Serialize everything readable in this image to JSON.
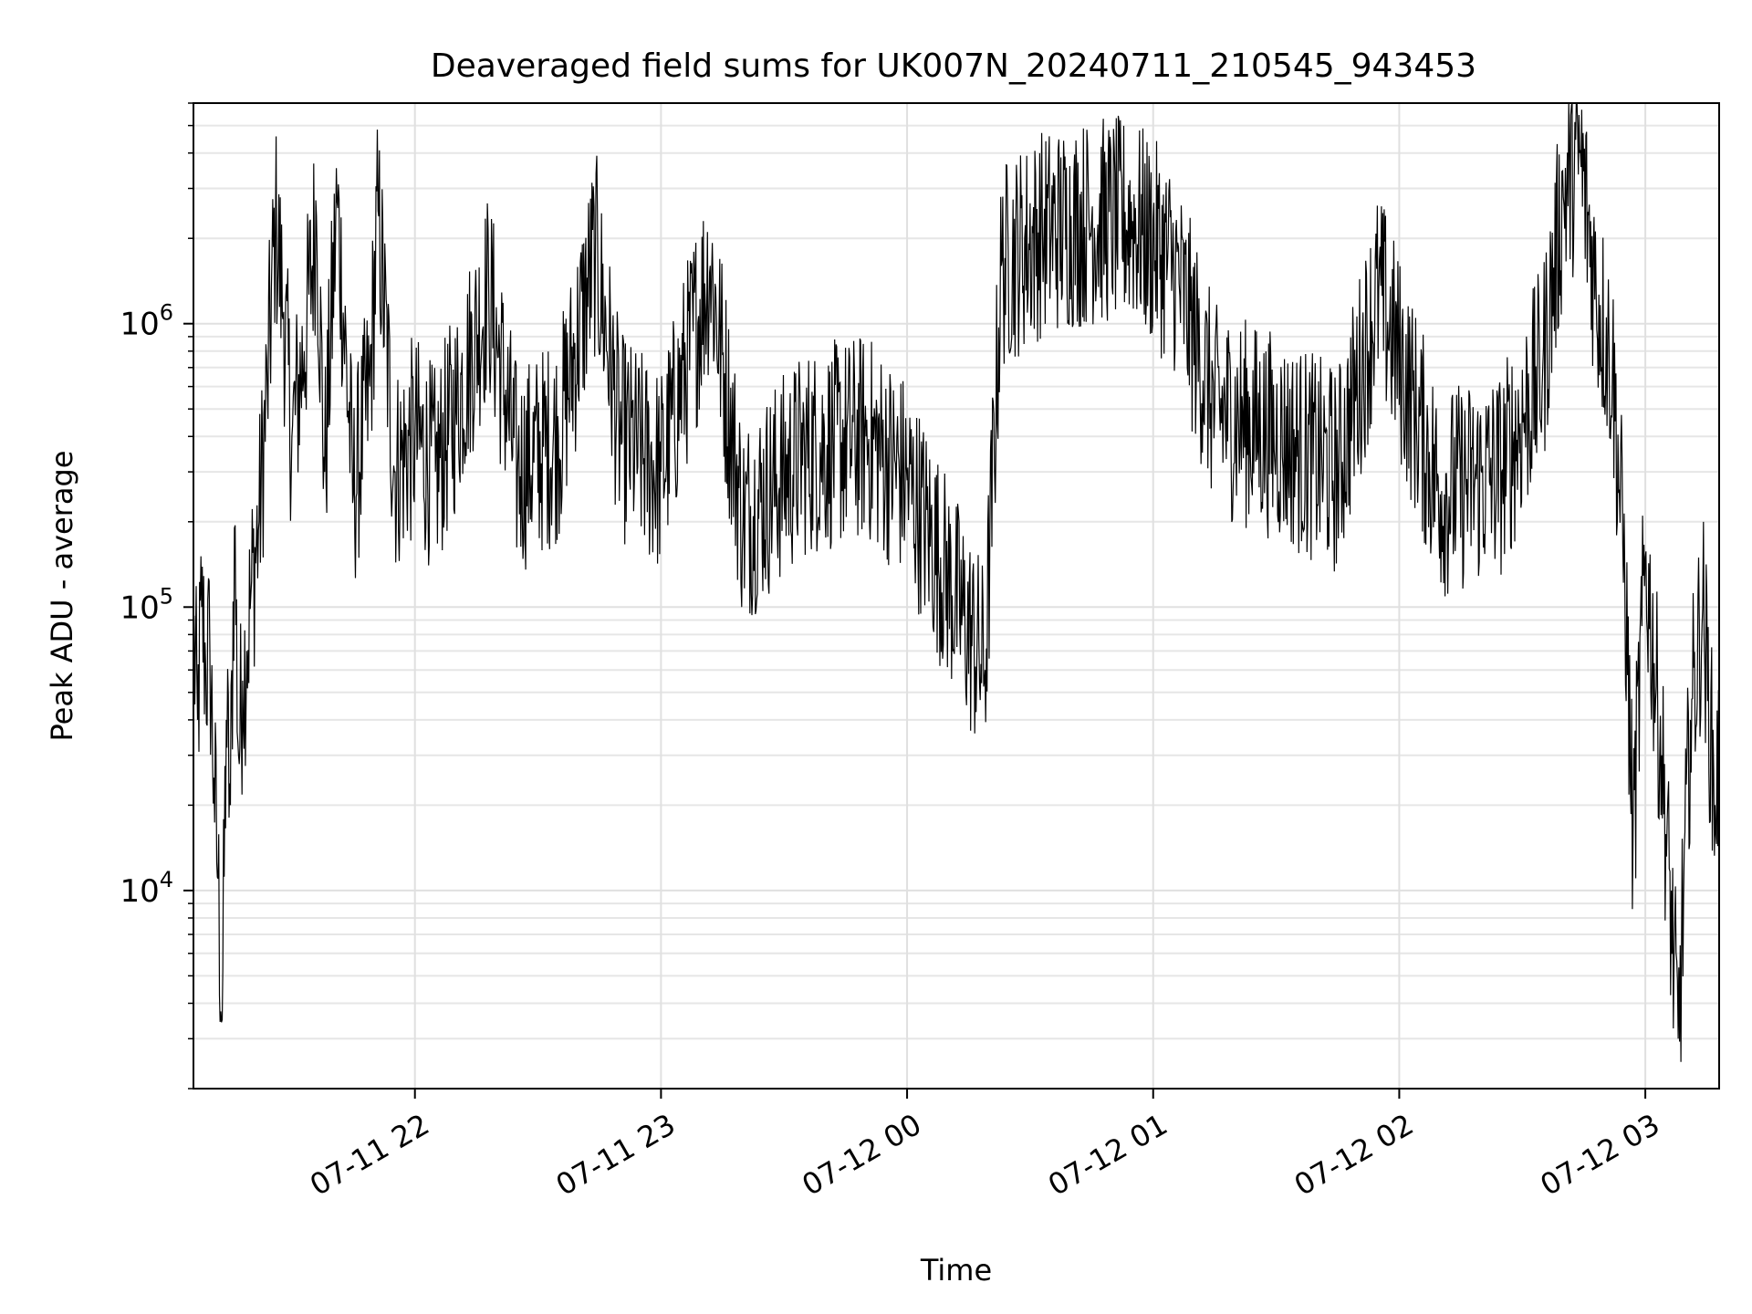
{
  "chart_data": {
    "type": "line",
    "title": "Deaveraged field sums for UK007N_20240711_210545_943453",
    "xlabel": "Time",
    "ylabel": "Peak ADU - average",
    "x_ticks": [
      "07-11 22",
      "07-11 23",
      "07-12 00",
      "07-12 01",
      "07-12 02",
      "07-12 03"
    ],
    "x_range": [
      "2024-07-11 21:06",
      "2024-07-12 03:18"
    ],
    "y_scale": "log",
    "y_ticks": [
      {
        "value": 10000,
        "base": "10",
        "exp": "4"
      },
      {
        "value": 100000,
        "base": "10",
        "exp": "5"
      },
      {
        "value": 1000000,
        "base": "10",
        "exp": "6"
      }
    ],
    "ylim": [
      2000,
      6000000
    ],
    "grid": true,
    "line_color": "#000000",
    "series": [
      {
        "values_note_free": true,
        "points": [
          [
            "2024-07-11 21:06",
            80000
          ],
          [
            "2024-07-11 21:07",
            40000
          ],
          [
            "2024-07-11 21:08",
            100000
          ],
          [
            "2024-07-11 21:09",
            60000
          ],
          [
            "2024-07-11 21:10",
            70000
          ],
          [
            "2024-07-11 21:11",
            25000
          ],
          [
            "2024-07-11 21:12",
            11000
          ],
          [
            "2024-07-11 21:13",
            3500
          ],
          [
            "2024-07-11 21:14",
            40000
          ],
          [
            "2024-07-11 21:15",
            20000
          ],
          [
            "2024-07-11 21:16",
            190000
          ],
          [
            "2024-07-11 21:17",
            30000
          ],
          [
            "2024-07-11 21:18",
            55000
          ],
          [
            "2024-07-11 21:19",
            70000
          ],
          [
            "2024-07-11 21:20",
            110000
          ],
          [
            "2024-07-11 21:22",
            200000
          ],
          [
            "2024-07-11 21:24",
            600000
          ],
          [
            "2024-07-11 21:26",
            2300000
          ],
          [
            "2024-07-11 21:28",
            1100000
          ],
          [
            "2024-07-11 21:30",
            400000
          ],
          [
            "2024-07-11 21:33",
            800000
          ],
          [
            "2024-07-11 21:36",
            2400000
          ],
          [
            "2024-07-11 21:38",
            300000
          ],
          [
            "2024-07-11 21:41",
            2700000
          ],
          [
            "2024-07-11 21:45",
            250000
          ],
          [
            "2024-07-11 21:49",
            600000
          ],
          [
            "2024-07-11 21:51",
            2500000
          ],
          [
            "2024-07-11 21:55",
            300000
          ],
          [
            "2024-07-11 22:00",
            400000
          ],
          [
            "2024-07-11 22:05",
            300000
          ],
          [
            "2024-07-11 22:10",
            500000
          ],
          [
            "2024-07-11 22:18",
            1300000
          ],
          [
            "2024-07-11 22:25",
            300000
          ],
          [
            "2024-07-11 22:35",
            400000
          ],
          [
            "2024-07-11 22:44",
            1800000
          ],
          [
            "2024-07-11 22:50",
            400000
          ],
          [
            "2024-07-11 23:00",
            300000
          ],
          [
            "2024-07-11 23:12",
            1600000
          ],
          [
            "2024-07-11 23:20",
            200000
          ],
          [
            "2024-07-11 23:35",
            350000
          ],
          [
            "2024-07-11 23:50",
            400000
          ],
          [
            "2024-07-12 00:00",
            280000
          ],
          [
            "2024-07-12 00:19",
            60000
          ],
          [
            "2024-07-12 00:23",
            1600000
          ],
          [
            "2024-07-12 00:33",
            2100000
          ],
          [
            "2024-07-12 00:45",
            2300000
          ],
          [
            "2024-07-12 00:55",
            2300000
          ],
          [
            "2024-07-12 01:05",
            1600000
          ],
          [
            "2024-07-12 01:15",
            500000
          ],
          [
            "2024-07-12 01:30",
            400000
          ],
          [
            "2024-07-12 01:45",
            300000
          ],
          [
            "2024-07-12 01:55",
            1300000
          ],
          [
            "2024-07-12 02:10",
            250000
          ],
          [
            "2024-07-12 02:25",
            300000
          ],
          [
            "2024-07-12 02:35",
            700000
          ],
          [
            "2024-07-12 02:40",
            2800000
          ],
          [
            "2024-07-12 02:44",
            4000000
          ],
          [
            "2024-07-12 02:48",
            1300000
          ],
          [
            "2024-07-12 02:52",
            700000
          ],
          [
            "2024-07-12 02:55",
            130000
          ],
          [
            "2024-07-12 02:57",
            15000
          ],
          [
            "2024-07-12 03:00",
            150000
          ],
          [
            "2024-07-12 03:04",
            30000
          ],
          [
            "2024-07-12 03:08",
            3000
          ],
          [
            "2024-07-12 03:11",
            40000
          ],
          [
            "2024-07-12 03:14",
            100000
          ],
          [
            "2024-07-12 03:17",
            20000
          ],
          [
            "2024-07-12 03:18",
            30000
          ]
        ]
      }
    ]
  }
}
